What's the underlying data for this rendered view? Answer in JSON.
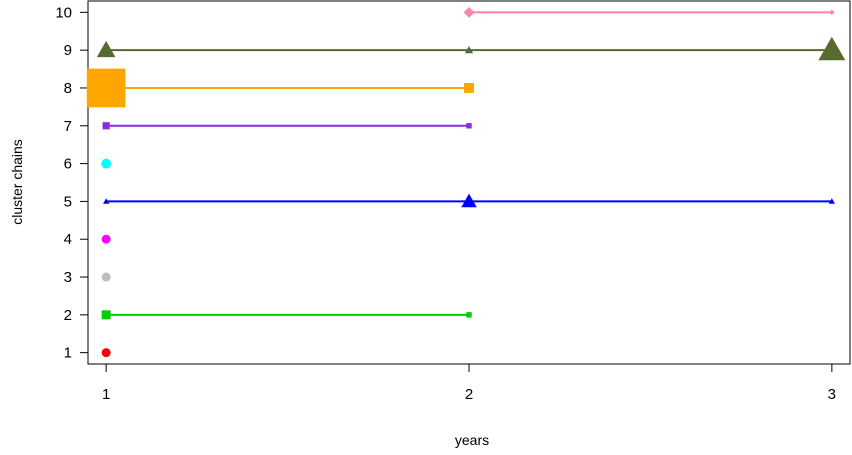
{
  "chart_data": {
    "type": "line",
    "title": "",
    "xlabel": "years",
    "ylabel": "cluster chains",
    "x_ticks": [
      1,
      2,
      3
    ],
    "y_ticks": [
      1,
      2,
      3,
      4,
      5,
      6,
      7,
      8,
      9,
      10
    ],
    "xlim": [
      0.95,
      3.05
    ],
    "ylim": [
      0.7,
      10.3
    ],
    "grid": false,
    "legend": "none",
    "series": [
      {
        "color": "#FF0000",
        "shape": "circle",
        "points": [
          {
            "x": 1,
            "y": 1,
            "size": 1
          }
        ]
      },
      {
        "color": "#00CD00",
        "shape": "square",
        "points": [
          {
            "x": 1,
            "y": 2,
            "size": 1
          },
          {
            "x": 2,
            "y": 2,
            "size": 0.6
          }
        ]
      },
      {
        "color": "#BEBEBE",
        "shape": "circle",
        "points": [
          {
            "x": 1,
            "y": 3,
            "size": 1
          }
        ]
      },
      {
        "color": "#FF00FF",
        "shape": "circle",
        "points": [
          {
            "x": 1,
            "y": 4,
            "size": 1
          }
        ]
      },
      {
        "color": "#0000FF",
        "shape": "triangle",
        "points": [
          {
            "x": 1,
            "y": 5,
            "size": 0.6
          },
          {
            "x": 2,
            "y": 5,
            "size": 1.5
          },
          {
            "x": 3,
            "y": 5,
            "size": 0.6
          }
        ]
      },
      {
        "color": "#00FFFF",
        "shape": "circle",
        "points": [
          {
            "x": 1,
            "y": 6,
            "size": 1.1
          }
        ]
      },
      {
        "color": "#8A2BE2",
        "shape": "square",
        "points": [
          {
            "x": 1,
            "y": 7,
            "size": 0.8
          },
          {
            "x": 2,
            "y": 7,
            "size": 0.6
          }
        ]
      },
      {
        "color": "#FFA500",
        "shape": "square",
        "points": [
          {
            "x": 1,
            "y": 8,
            "size": 4.3
          },
          {
            "x": 2,
            "y": 8,
            "size": 1.1
          }
        ]
      },
      {
        "color": "#556B2F",
        "shape": "triangle",
        "points": [
          {
            "x": 1,
            "y": 9,
            "size": 1.8
          },
          {
            "x": 2,
            "y": 9,
            "size": 0.8
          },
          {
            "x": 3,
            "y": 9,
            "size": 2.6
          }
        ]
      },
      {
        "color": "#FF82AB",
        "shape": "diamond",
        "points": [
          {
            "x": 2,
            "y": 10,
            "size": 1.2
          },
          {
            "x": 3,
            "y": 10,
            "size": 0.6
          }
        ]
      }
    ]
  }
}
